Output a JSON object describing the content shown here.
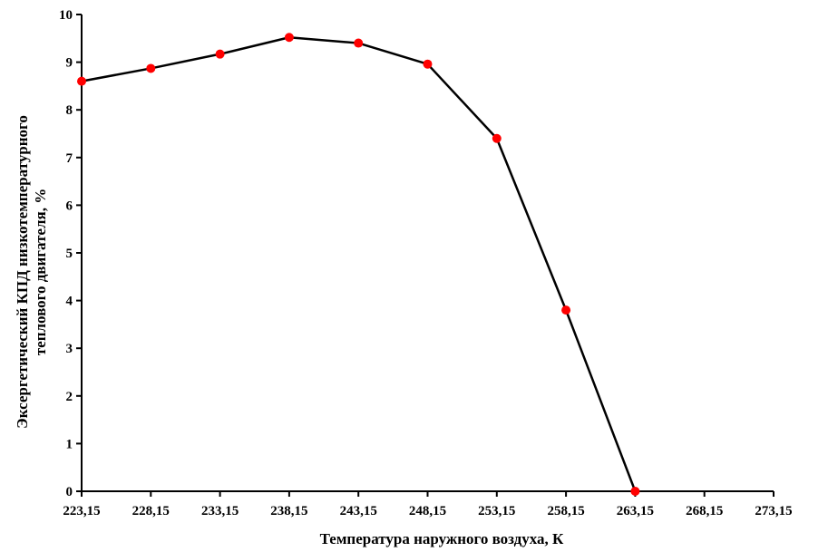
{
  "chart_data": {
    "type": "line",
    "title": "",
    "xlabel": "Температура наружного воздуха, К",
    "ylabel_lines": [
      "Эксергетический КПД низкотемпературного",
      "теплового двигателя, %"
    ],
    "x_tick_labels": [
      "223,15",
      "228,15",
      "233,15",
      "238,15",
      "243,15",
      "248,15",
      "253,15",
      "258,15",
      "263,15",
      "268,15",
      "273,15"
    ],
    "y_tick_labels": [
      "0",
      "1",
      "2",
      "3",
      "4",
      "5",
      "6",
      "7",
      "8",
      "9",
      "10"
    ],
    "xlim": [
      223.15,
      273.15
    ],
    "ylim": [
      0,
      10
    ],
    "grid": false,
    "series": [
      {
        "x": [
          223.15,
          228.15,
          233.15,
          238.15,
          243.15,
          248.15,
          253.15,
          258.15,
          263.15
        ],
        "values": [
          8.6,
          8.87,
          9.17,
          9.52,
          9.4,
          8.96,
          7.4,
          3.8,
          0
        ],
        "line_color": "#000000",
        "marker_color": "#ff0000"
      }
    ]
  }
}
